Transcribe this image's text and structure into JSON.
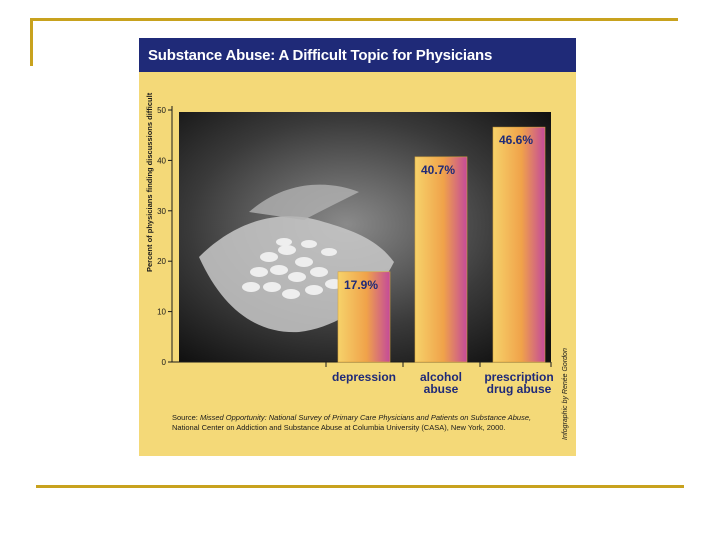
{
  "slide": {
    "accent_color": "#c8a21e"
  },
  "figure": {
    "title": "Substance Abuse: A Difficult Topic for Physicians",
    "title_bar_color": "#1f2a78",
    "background_color": "#f4d978",
    "source_label": "Source:",
    "source_title": "Missed Opportunity: National Survey of Primary Care Physicians and Patients on Substance Abuse,",
    "source_rest": "National Center on Addiction and Substance Abuse at Columbia University (CASA), New York, 2000.",
    "credit": "Infographic by Renée Gordon"
  },
  "chart_data": {
    "type": "bar",
    "categories": [
      "depression",
      "alcohol abuse",
      "prescription drug abuse"
    ],
    "values": [
      17.9,
      40.7,
      46.6
    ],
    "value_labels": [
      "17.9%",
      "40.7%",
      "46.6%"
    ],
    "ylabel": "Percent of physicians finding discussions difficult",
    "ylim": [
      0,
      50
    ],
    "yticks": [
      0,
      10,
      20,
      30,
      40,
      50
    ],
    "grid": false,
    "legend": "none",
    "bar_gradient": [
      "#f6d26a",
      "#f0a24a",
      "#c44a9a"
    ],
    "label_color": "#1f2a78"
  }
}
